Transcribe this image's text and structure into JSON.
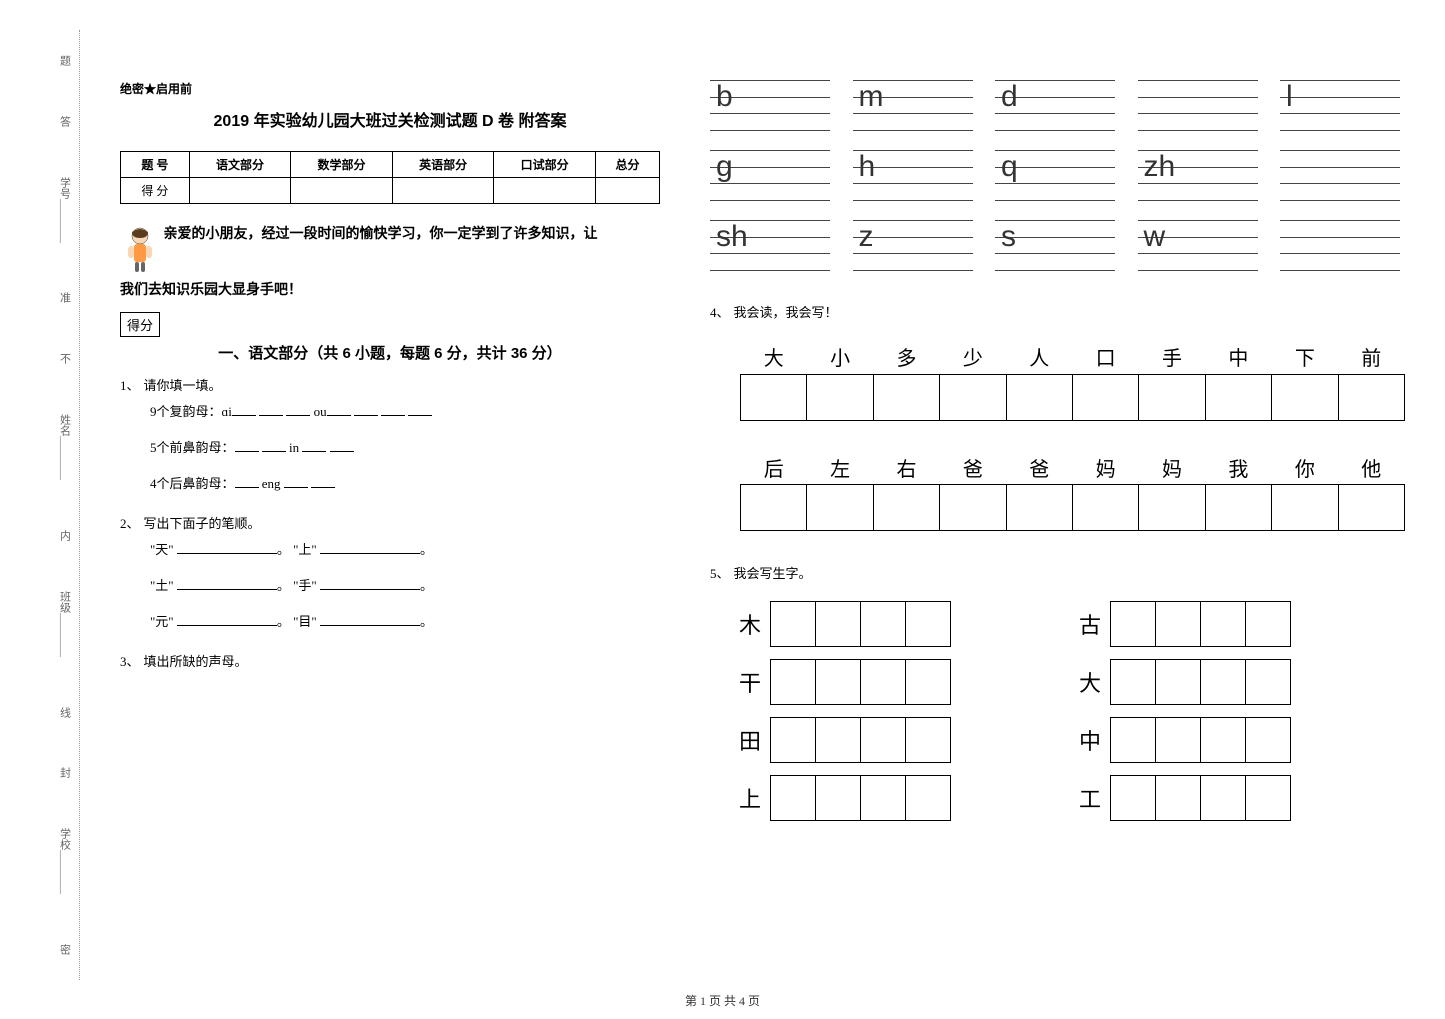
{
  "sidebar": {
    "labels": [
      "学校",
      "班级",
      "姓名",
      "学号"
    ],
    "dotted_text": [
      "密",
      "封",
      "线",
      "内",
      "不",
      "准",
      "答",
      "题"
    ]
  },
  "confidential": "绝密★启用前",
  "title": "2019 年实验幼儿园大班过关检测试题 D 卷  附答案",
  "score_table": {
    "headers": [
      "题  号",
      "语文部分",
      "数学部分",
      "英语部分",
      "口试部分",
      "总分"
    ],
    "row_label": "得  分"
  },
  "intro": {
    "line1": "亲爱的小朋友，经过一段时间的愉快学习，你一定学到了许多知识，让",
    "line2": "我们去知识乐园大显身手吧！"
  },
  "score_box": "得分",
  "section1": {
    "title": "一、语文部分（共 6 小题，每题 6 分，共计 36 分）",
    "q1": {
      "num": "1、",
      "text": "请你填一填。",
      "sub1_prefix": "9个复韵母：ɑi",
      "sub1_mid": "ou",
      "sub2_prefix": "5个前鼻韵母：",
      "sub2_mid": "in",
      "sub3_prefix": "4个后鼻韵母：",
      "sub3_mid": "eng"
    },
    "q2": {
      "num": "2、",
      "text": "写出下面子的笔顺。",
      "pairs": [
        {
          "a": "天",
          "b": "上"
        },
        {
          "a": "土",
          "b": "手"
        },
        {
          "a": "元",
          "b": "目"
        }
      ]
    },
    "q3": {
      "num": "3、",
      "text": "填出所缺的声母。"
    },
    "q4": {
      "num": "4、",
      "text": "我会读，我会写！"
    },
    "q5": {
      "num": "5、",
      "text": "我会写生字。"
    }
  },
  "pinyin": {
    "rows": [
      [
        "b",
        "m",
        "d",
        "",
        "l"
      ],
      [
        "g",
        "h",
        "q",
        "zh",
        ""
      ],
      [
        "sh",
        "z",
        "s",
        "w",
        ""
      ]
    ]
  },
  "char_tables": {
    "t1": [
      "大",
      "小",
      "多",
      "少",
      "人",
      "口",
      "手",
      "中",
      "下",
      "前"
    ],
    "t2": [
      "后",
      "左",
      "右",
      "爸",
      "爸",
      "妈",
      "妈",
      "我",
      "你",
      "他"
    ]
  },
  "practice": {
    "pairs": [
      {
        "left": "木",
        "right": "古"
      },
      {
        "left": "干",
        "right": "大"
      },
      {
        "left": "田",
        "right": "中"
      },
      {
        "left": "上",
        "right": "工"
      }
    ],
    "box_count": 4
  },
  "footer": "第 1 页 共 4 页"
}
